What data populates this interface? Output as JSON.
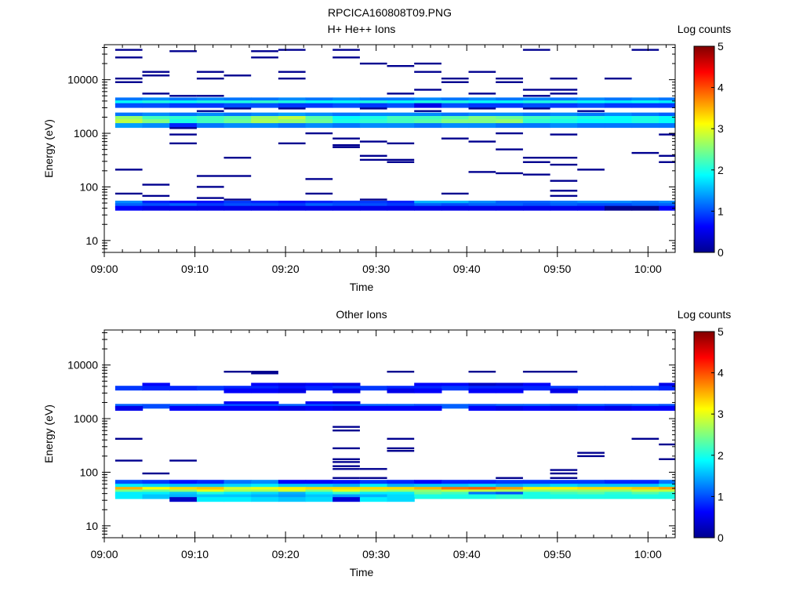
{
  "figure_title": "RPCICA160808T09.PNG",
  "chart_data": [
    {
      "type": "heatmap",
      "title": "H+ He++ Ions",
      "xlabel": "Time",
      "ylabel": "Energy (eV)",
      "yscale": "log",
      "ylim": [
        6,
        45000
      ],
      "xlim": [
        "09:00",
        "10:03"
      ],
      "xticks": [
        "09:00",
        "09:10",
        "09:20",
        "09:30",
        "09:40",
        "09:50",
        "10:00"
      ],
      "yticks": [
        {
          "value": 10,
          "label": "10"
        },
        {
          "value": 100,
          "label": "100"
        },
        {
          "value": 1000,
          "label": "1000"
        },
        {
          "value": 10000,
          "label": "10000"
        }
      ],
      "colorbar": {
        "label": "Log counts",
        "min": 0,
        "max": 5,
        "ticks": [
          "0",
          "1",
          "2",
          "3",
          "4",
          "5"
        ]
      },
      "time_columns": [
        "09:02",
        "09:05",
        "09:08",
        "09:11",
        "09:14",
        "09:17",
        "09:20",
        "09:23",
        "09:26",
        "09:29",
        "09:32",
        "09:35",
        "09:38",
        "09:41",
        "09:44",
        "09:47",
        "09:50",
        "09:53",
        "09:56",
        "09:59",
        "10:02"
      ],
      "bands": [
        {
          "energy": 4200,
          "values": [
            1.2,
            1.3,
            1.2,
            1.3,
            1.2,
            1.2,
            1.3,
            1.2,
            1.3,
            1.2,
            1.2,
            1.3,
            1.2,
            1.3,
            1.2,
            1.3,
            1.2,
            1.3,
            1.2,
            1.3,
            1.2
          ]
        },
        {
          "energy": 3700,
          "values": [
            1.9,
            2.0,
            1.9,
            2.0,
            2.0,
            2.1,
            2.0,
            1.9,
            1.9,
            2.0,
            1.9,
            2.0,
            2.0,
            1.9,
            1.9,
            2.0,
            2.0,
            1.9,
            1.8,
            1.9,
            1.8
          ]
        },
        {
          "energy": 3300,
          "values": [
            1.0,
            1.0,
            0.9,
            0.9,
            1.0,
            1.0,
            0.9,
            0.9,
            1.0,
            0.9,
            1.0,
            0.5,
            1.0,
            0.9,
            0.9,
            1.0,
            0.9,
            1.0,
            0.9,
            0.9,
            0.9
          ]
        },
        {
          "energy": 2200,
          "values": [
            1.2,
            1.3,
            1.2,
            1.3,
            1.2,
            1.3,
            1.4,
            1.3,
            1.2,
            1.3,
            1.3,
            1.3,
            1.2,
            1.3,
            1.3,
            1.2,
            1.3,
            1.2,
            1.3,
            1.2,
            1.1
          ]
        },
        {
          "energy": 1900,
          "values": [
            2.6,
            2.2,
            2.1,
            2.2,
            2.3,
            2.6,
            2.8,
            2.3,
            1.9,
            2.0,
            2.2,
            2.2,
            2.3,
            2.5,
            2.4,
            2.2,
            2.1,
            2.0,
            1.9,
            2.0,
            1.9
          ]
        },
        {
          "energy": 1650,
          "values": [
            2.8,
            2.5,
            2.0,
            2.2,
            2.4,
            2.7,
            2.6,
            2.4,
            2.0,
            2.1,
            2.2,
            2.3,
            2.5,
            2.5,
            2.6,
            2.1,
            2.0,
            1.9,
            1.9,
            2.0,
            1.9
          ]
        },
        {
          "energy": 1400,
          "values": [
            1.4,
            1.3,
            0.8,
            1.2,
            1.3,
            1.3,
            1.2,
            1.3,
            1.2,
            1.3,
            1.3,
            1.2,
            1.3,
            1.3,
            1.2,
            1.2,
            1.3,
            1.2,
            1.2,
            1.2,
            1.2
          ]
        },
        {
          "energy": 50,
          "values": [
            1.3,
            0.8,
            0.7,
            0.7,
            0.9,
            0.8,
            0.7,
            0.8,
            0.9,
            0.9,
            0.8,
            1.5,
            1.5,
            1.3,
            1.1,
            1.1,
            1.2,
            1.3,
            1.3,
            1.2,
            1.3
          ]
        },
        {
          "energy": 45,
          "values": [
            1.1,
            1.0,
            1.1,
            0.9,
            1.0,
            1.0,
            0.9,
            1.1,
            1.0,
            1.0,
            0.9,
            1.1,
            1.0,
            1.1,
            1.1,
            1.0,
            1.1,
            1.0,
            1.0,
            1.1,
            1.1
          ]
        },
        {
          "energy": 40,
          "values": [
            0.6,
            0.5,
            0.5,
            0.5,
            0.5,
            0.5,
            0.5,
            0.5,
            0.5,
            0.5,
            0.5,
            0.5,
            0.5,
            0.5,
            0.5,
            0.5,
            0.5,
            0.5,
            0.0,
            0.0,
            0.6
          ]
        }
      ],
      "sparse": [
        {
          "energy": 36000,
          "columns": [
            0,
            6,
            8,
            15,
            19
          ]
        },
        {
          "energy": 34000,
          "columns": [
            2,
            5
          ]
        },
        {
          "energy": 26000,
          "columns": [
            0,
            5,
            8
          ]
        },
        {
          "energy": 20000,
          "columns": [
            9,
            11
          ]
        },
        {
          "energy": 18000,
          "columns": [
            10
          ]
        },
        {
          "energy": 14000,
          "columns": [
            1,
            3,
            6,
            11,
            13
          ]
        },
        {
          "energy": 12000,
          "columns": [
            1,
            4
          ]
        },
        {
          "energy": 10500,
          "columns": [
            0,
            3,
            6,
            12,
            14,
            16,
            18
          ]
        },
        {
          "energy": 9000,
          "columns": [
            0,
            12,
            14
          ]
        },
        {
          "energy": 6500,
          "columns": [
            11,
            15,
            16
          ]
        },
        {
          "energy": 5500,
          "columns": [
            1,
            10,
            13,
            16
          ]
        },
        {
          "energy": 5000,
          "columns": [
            2,
            3,
            15
          ]
        },
        {
          "energy": 2900,
          "columns": [
            4,
            6,
            9,
            13,
            15
          ]
        },
        {
          "energy": 2600,
          "columns": [
            3,
            11,
            17
          ]
        },
        {
          "energy": 1250,
          "columns": [
            2
          ]
        },
        {
          "energy": 1000,
          "columns": [
            7,
            14
          ]
        },
        {
          "energy": 950,
          "columns": [
            2,
            16,
            20
          ]
        },
        {
          "energy": 800,
          "columns": [
            8,
            12
          ]
        },
        {
          "energy": 700,
          "columns": [
            9,
            13
          ]
        },
        {
          "energy": 650,
          "columns": [
            2,
            6,
            10
          ]
        },
        {
          "energy": 600,
          "columns": [
            8
          ]
        },
        {
          "energy": 550,
          "columns": [
            8
          ]
        },
        {
          "energy": 500,
          "columns": [
            14
          ]
        },
        {
          "energy": 430,
          "columns": [
            19
          ]
        },
        {
          "energy": 380,
          "columns": [
            9,
            20
          ]
        },
        {
          "energy": 350,
          "columns": [
            4,
            15,
            16
          ]
        },
        {
          "energy": 320,
          "columns": [
            9,
            10
          ]
        },
        {
          "energy": 290,
          "columns": [
            10,
            15,
            20
          ]
        },
        {
          "energy": 260,
          "columns": [
            16
          ]
        },
        {
          "energy": 210,
          "columns": [
            0,
            17
          ]
        },
        {
          "energy": 190,
          "columns": [
            13
          ]
        },
        {
          "energy": 180,
          "columns": [
            14
          ]
        },
        {
          "energy": 170,
          "columns": [
            15
          ]
        },
        {
          "energy": 160,
          "columns": [
            3,
            4
          ]
        },
        {
          "energy": 140,
          "columns": [
            7
          ]
        },
        {
          "energy": 130,
          "columns": [
            16
          ]
        },
        {
          "energy": 110,
          "columns": [
            1
          ]
        },
        {
          "energy": 100,
          "columns": [
            3
          ]
        },
        {
          "energy": 85,
          "columns": [
            16
          ]
        },
        {
          "energy": 75,
          "columns": [
            0,
            7,
            12
          ]
        },
        {
          "energy": 68,
          "columns": [
            1,
            16
          ]
        },
        {
          "energy": 62,
          "columns": [
            3
          ]
        },
        {
          "energy": 58,
          "columns": [
            4,
            9
          ]
        }
      ]
    },
    {
      "type": "heatmap",
      "title": "Other Ions",
      "xlabel": "Time",
      "ylabel": "Energy (eV)",
      "yscale": "log",
      "ylim": [
        6,
        45000
      ],
      "xlim": [
        "09:00",
        "10:03"
      ],
      "xticks": [
        "09:00",
        "09:10",
        "09:20",
        "09:30",
        "09:40",
        "09:50",
        "10:00"
      ],
      "yticks": [
        {
          "value": 10,
          "label": "10"
        },
        {
          "value": 100,
          "label": "100"
        },
        {
          "value": 1000,
          "label": "1000"
        },
        {
          "value": 10000,
          "label": "10000"
        }
      ],
      "colorbar": {
        "label": "Log counts",
        "min": 0,
        "max": 5,
        "ticks": [
          "0",
          "1",
          "2",
          "3",
          "4",
          "5"
        ]
      },
      "time_columns": [
        "09:02",
        "09:05",
        "09:08",
        "09:11",
        "09:14",
        "09:17",
        "09:20",
        "09:23",
        "09:26",
        "09:29",
        "09:32",
        "09:35",
        "09:38",
        "09:41",
        "09:44",
        "09:47",
        "09:50",
        "09:53",
        "09:56",
        "09:59",
        "10:02"
      ],
      "bands": [
        {
          "energy": 4200,
          "values": [
            null,
            0.6,
            null,
            null,
            null,
            0.6,
            0.5,
            0.6,
            0.5,
            null,
            null,
            0.6,
            0.6,
            0.3,
            0.4,
            0.6,
            null,
            null,
            null,
            null,
            0.5
          ]
        },
        {
          "energy": 3700,
          "values": [
            0.9,
            0.8,
            0.8,
            0.9,
            0.8,
            0.8,
            0.7,
            0.8,
            0.9,
            0.9,
            0.8,
            0.8,
            0.9,
            0.8,
            0.8,
            0.8,
            0.9,
            0.9,
            0.9,
            0.9,
            0.8
          ]
        },
        {
          "energy": 3300,
          "values": [
            null,
            null,
            null,
            null,
            0.6,
            0.6,
            0.5,
            null,
            0.5,
            null,
            0.5,
            0.6,
            null,
            0.6,
            0.6,
            null,
            0.5,
            null,
            null,
            null,
            null
          ]
        },
        {
          "energy": 1900,
          "values": [
            null,
            null,
            null,
            null,
            0.6,
            0.6,
            null,
            0.6,
            0.5,
            null,
            null,
            null,
            null,
            null,
            null,
            null,
            null,
            null,
            null,
            null,
            null
          ]
        },
        {
          "energy": 1700,
          "values": [
            1.1,
            1.0,
            1.1,
            1.1,
            1.0,
            1.0,
            1.1,
            1.0,
            1.0,
            1.1,
            1.1,
            1.0,
            1.1,
            1.0,
            1.1,
            1.1,
            1.0,
            1.1,
            1.0,
            1.1,
            1.0
          ]
        },
        {
          "energy": 1550,
          "values": [
            0.5,
            null,
            0.6,
            0.6,
            0.6,
            0.6,
            0.5,
            0.6,
            0.5,
            0.6,
            0.6,
            0.6,
            null,
            0.6,
            0.5,
            0.6,
            0.5,
            0.6,
            0.5,
            0.6,
            0.6
          ]
        },
        {
          "energy": 65,
          "values": [
            1.0,
            0.9,
            0.7,
            0.8,
            1.2,
            1.3,
            0.6,
            0.6,
            0.7,
            0.9,
            0.8,
            0.6,
            0.8,
            0.8,
            0.9,
            0.9,
            0.9,
            0.9,
            0.8,
            0.8,
            1.2
          ]
        },
        {
          "energy": 55,
          "values": [
            1.8,
            1.7,
            1.6,
            1.6,
            1.7,
            1.8,
            1.6,
            1.6,
            1.5,
            1.8,
            1.5,
            1.6,
            1.6,
            1.7,
            1.5,
            1.6,
            1.7,
            1.6,
            1.6,
            1.6,
            1.8
          ]
        },
        {
          "energy": 48,
          "values": [
            3.5,
            3.1,
            3.3,
            3.4,
            2.9,
            3.0,
            3.2,
            3.3,
            3.3,
            3.3,
            3.3,
            3.5,
            3.8,
            3.9,
            3.6,
            3.2,
            3.2,
            3.3,
            3.3,
            3.4,
            3.6
          ]
        },
        {
          "energy": 43,
          "values": [
            2.5,
            2.4,
            2.6,
            3.0,
            2.7,
            2.7,
            2.9,
            2.5,
            3.0,
            2.7,
            2.6,
            2.6,
            2.8,
            2.8,
            2.7,
            2.6,
            2.6,
            2.6,
            2.6,
            2.8,
            2.8
          ]
        },
        {
          "energy": 39,
          "values": [
            1.8,
            1.8,
            1.6,
            2.0,
            1.8,
            1.7,
            1.5,
            1.8,
            2.1,
            1.8,
            1.8,
            2.4,
            2.2,
            1.2,
            1.0,
            2.0,
            2.2,
            2.3,
            2.1,
            2.3,
            2.1
          ]
        },
        {
          "energy": 35,
          "values": [
            1.8,
            1.6,
            1.5,
            1.6,
            1.6,
            1.5,
            1.4,
            1.6,
            1.4,
            1.5,
            1.7,
            2.0,
            2.0,
            2.0,
            2.1,
            2.0,
            2.0,
            2.0,
            2.0,
            2.0,
            2.0
          ]
        },
        {
          "energy": 31,
          "values": [
            null,
            null,
            0.3,
            1.8,
            1.8,
            1.7,
            1.6,
            1.7,
            0.4,
            1.8,
            1.7,
            null,
            null,
            null,
            null,
            null,
            null,
            null,
            null,
            null,
            null
          ]
        }
      ],
      "sparse": [
        {
          "energy": 7500,
          "columns": [
            4,
            5,
            10,
            13,
            15,
            16
          ]
        },
        {
          "energy": 7000,
          "columns": [
            5
          ]
        },
        {
          "energy": 700,
          "columns": [
            8
          ]
        },
        {
          "energy": 600,
          "columns": [
            8
          ]
        },
        {
          "energy": 420,
          "columns": [
            0,
            10,
            19
          ]
        },
        {
          "energy": 330,
          "columns": [
            20
          ]
        },
        {
          "energy": 280,
          "columns": [
            8,
            10
          ]
        },
        {
          "energy": 250,
          "columns": [
            10
          ]
        },
        {
          "energy": 230,
          "columns": [
            17
          ]
        },
        {
          "energy": 200,
          "columns": [
            17
          ]
        },
        {
          "energy": 175,
          "columns": [
            8,
            20
          ]
        },
        {
          "energy": 165,
          "columns": [
            0,
            2
          ]
        },
        {
          "energy": 155,
          "columns": [
            8
          ]
        },
        {
          "energy": 130,
          "columns": [
            8
          ]
        },
        {
          "energy": 115,
          "columns": [
            8,
            9
          ]
        },
        {
          "energy": 110,
          "columns": [
            16
          ]
        },
        {
          "energy": 95,
          "columns": [
            1,
            16
          ]
        },
        {
          "energy": 78,
          "columns": [
            8,
            9,
            14,
            16
          ]
        }
      ]
    }
  ]
}
